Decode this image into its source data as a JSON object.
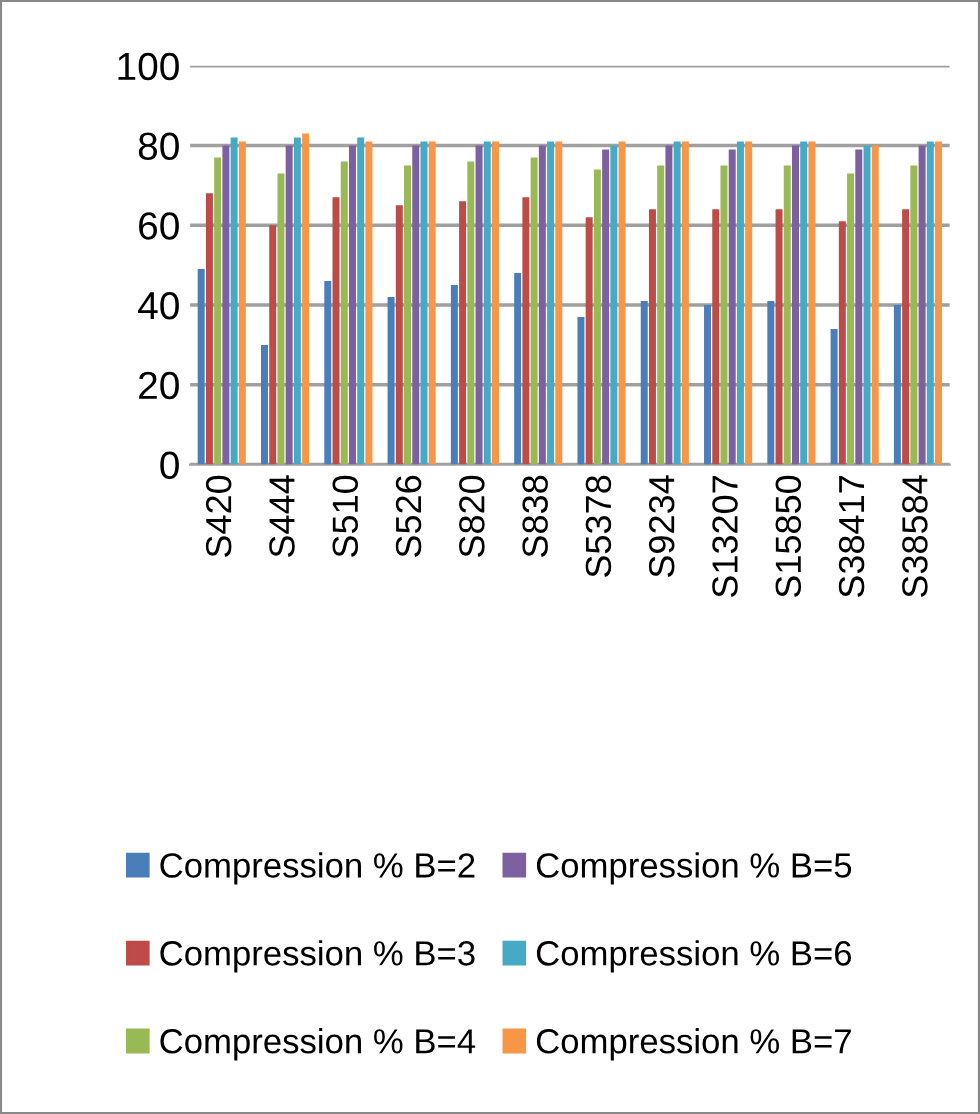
{
  "chart_data": {
    "type": "bar",
    "categories": [
      "S420",
      "S444",
      "S510",
      "S526",
      "S820",
      "S838",
      "S5378",
      "S9234",
      "S13207",
      "S15850",
      "S38417",
      "S38584"
    ],
    "series": [
      {
        "name": "Compression % B=2",
        "color": "#4a7ebb",
        "values": [
          49,
          30,
          46,
          42,
          45,
          48,
          37,
          41,
          40,
          41,
          34,
          40
        ]
      },
      {
        "name": "Compression % B=3",
        "color": "#be4b48",
        "values": [
          68,
          60,
          67,
          65,
          66,
          67,
          62,
          64,
          64,
          64,
          61,
          64
        ]
      },
      {
        "name": "Compression % B=4",
        "color": "#98b954",
        "values": [
          77,
          73,
          76,
          75,
          76,
          77,
          74,
          75,
          75,
          75,
          73,
          75
        ]
      },
      {
        "name": "Compression % B=5",
        "color": "#7d60a0",
        "values": [
          80,
          80,
          80,
          80,
          80,
          80,
          79,
          80,
          79,
          80,
          79,
          80
        ]
      },
      {
        "name": "Compression % B=6",
        "color": "#46aac5",
        "values": [
          82,
          82,
          82,
          81,
          81,
          81,
          80,
          81,
          81,
          81,
          80,
          81
        ]
      },
      {
        "name": "Compression % B=7",
        "color": "#f79646",
        "values": [
          81,
          83,
          81,
          81,
          81,
          81,
          81,
          81,
          81,
          81,
          80,
          81
        ]
      }
    ],
    "ylim": [
      0,
      100
    ],
    "yticks": [
      0,
      20,
      40,
      60,
      80,
      100
    ],
    "grid": "y",
    "legend": "bottom"
  }
}
